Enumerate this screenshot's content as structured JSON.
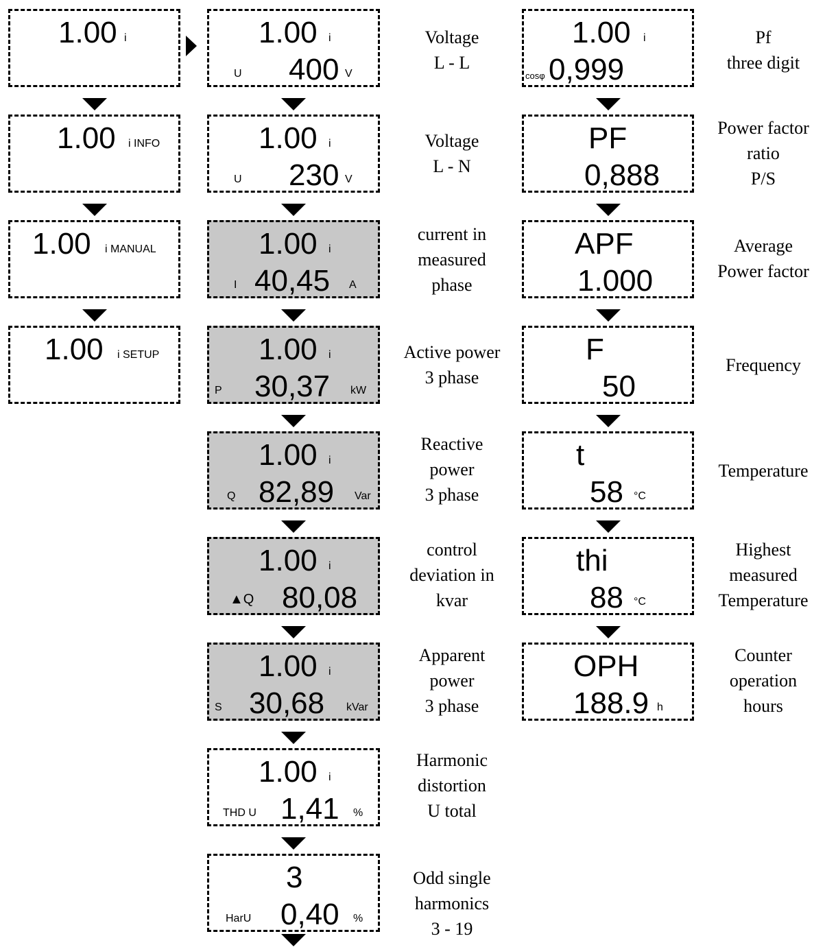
{
  "col1": [
    {
      "value": "1.00",
      "suffix": "i"
    },
    {
      "value": "1.00",
      "suffix": "i INFO"
    },
    {
      "value": "1.00",
      "suffix": "i MANUAL"
    },
    {
      "value": "1.00",
      "suffix": "i SETUP"
    }
  ],
  "col2": [
    {
      "top": "1.00",
      "top_suffix": "i",
      "prefix": "U",
      "value": "400",
      "unit": "V",
      "label": [
        "Voltage",
        "L - L"
      ]
    },
    {
      "top": "1.00",
      "top_suffix": "i",
      "prefix": "U",
      "value": "230",
      "unit": "V",
      "label": [
        "Voltage",
        "L - N"
      ]
    },
    {
      "top": "1.00",
      "top_suffix": "i",
      "prefix": "I",
      "value": "40,45",
      "unit": "A",
      "label": [
        "current in",
        "measured",
        "phase"
      ]
    },
    {
      "top": "1.00",
      "top_suffix": "i",
      "prefix": "P",
      "value": "30,37",
      "unit": "kW",
      "label": [
        "Active power",
        "3 phase"
      ]
    },
    {
      "top": "1.00",
      "top_suffix": "i",
      "prefix": "Q",
      "value": "82,89",
      "unit": "Var",
      "label": [
        "Reactive",
        "power",
        "3 phase"
      ]
    },
    {
      "top": "1.00",
      "top_suffix": "i",
      "prefix": "▲Q",
      "value": "80,08",
      "unit": "",
      "label": [
        "control",
        "deviation in",
        "kvar"
      ]
    },
    {
      "top": "1.00",
      "top_suffix": "i",
      "prefix": "S",
      "value": "30,68",
      "unit": "kVar",
      "label": [
        "Apparent",
        "power",
        "3 phase"
      ]
    },
    {
      "top": "1.00",
      "top_suffix": "i",
      "prefix": "THD U",
      "value": "1,41",
      "unit": "%",
      "label": [
        "Harmonic",
        "distortion",
        "U total"
      ]
    },
    {
      "top": "3",
      "top_suffix": "",
      "prefix": "HarU",
      "value": "0,40",
      "unit": "%",
      "label": [
        "Odd single",
        "harmonics",
        "3 - 19"
      ]
    }
  ],
  "col3": [
    {
      "top": "1.00",
      "top_suffix": "i",
      "prefix": "cosφ",
      "value": "0,999",
      "unit": "",
      "label": [
        "Pf",
        "three digit"
      ]
    },
    {
      "top": "PF",
      "top_suffix": "",
      "prefix": "",
      "value": "0,888",
      "unit": "",
      "label": [
        "Power factor",
        "ratio",
        "P/S"
      ]
    },
    {
      "top": "APF",
      "top_suffix": "",
      "prefix": "",
      "value": "1.000",
      "unit": "",
      "label": [
        "Average",
        "Power factor"
      ]
    },
    {
      "top": "F",
      "top_suffix": "",
      "prefix": "",
      "value": "50",
      "unit": "",
      "label": [
        "Frequency"
      ]
    },
    {
      "top": "t",
      "top_suffix": "",
      "prefix": "",
      "value": "58",
      "unit": "°C",
      "label": [
        "Temperature"
      ]
    },
    {
      "top": "thi",
      "top_suffix": "",
      "prefix": "",
      "value": "88",
      "unit": "°C",
      "label": [
        "Highest",
        "measured",
        "Temperature"
      ]
    },
    {
      "top": "OPH",
      "top_suffix": "",
      "prefix": "",
      "value": "188.9",
      "unit": "h",
      "label": [
        "Counter",
        "operation",
        "hours"
      ]
    }
  ]
}
